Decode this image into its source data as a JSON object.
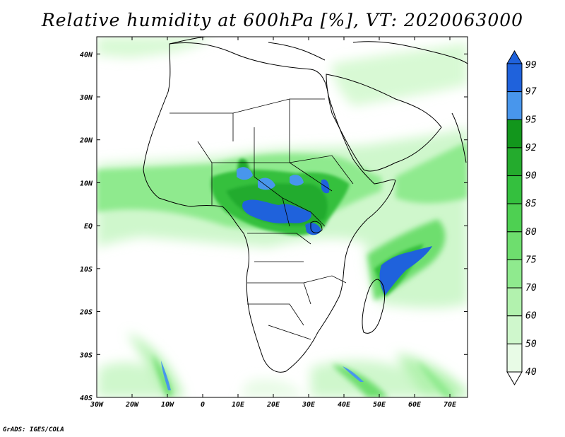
{
  "title": "Relative humidity at 600hPa [%], VT: 2020063000",
  "credit": "GrADS: IGES/COLA",
  "map": {
    "lon_ticks": [
      "30W",
      "20W",
      "10W",
      "0",
      "10E",
      "20E",
      "30E",
      "40E",
      "50E",
      "60E",
      "70E"
    ],
    "lat_ticks": [
      "40N",
      "30N",
      "20N",
      "10N",
      "EQ",
      "10S",
      "20S",
      "30S",
      "40S"
    ],
    "lon_range": [
      -30,
      75
    ],
    "lat_range": [
      -40,
      44
    ]
  },
  "colorbar": {
    "levels": [
      "99",
      "97",
      "95",
      "92",
      "90",
      "85",
      "80",
      "75",
      "70",
      "60",
      "50",
      "40"
    ],
    "colors": [
      "#1f62dc",
      "#4896ec",
      "#12961c",
      "#24ab2d",
      "#34c03e",
      "#4ed052",
      "#6ede6e",
      "#8fea8e",
      "#b2f2ae",
      "#cff7cc",
      "#e8fbe6"
    ]
  }
}
